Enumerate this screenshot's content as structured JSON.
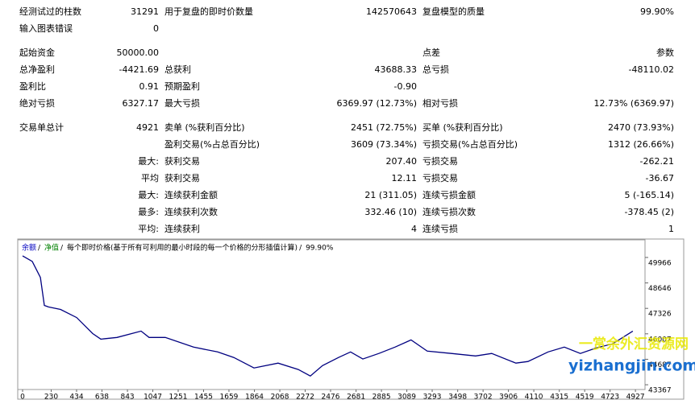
{
  "report": {
    "sections": [
      [
        [
          "经测试过的柱数",
          "31291",
          "用于复盘的即时价数量",
          "142570643",
          "复盘模型的质量",
          "99.90%"
        ],
        [
          "输入图表错误",
          "0",
          null,
          null,
          null,
          null
        ]
      ],
      [
        [
          "起始资金",
          "50000.00",
          null,
          null,
          "点差",
          "参数"
        ],
        [
          "总净盈利",
          "-4421.69",
          "总获利",
          "43688.33",
          "总亏损",
          "-48110.02"
        ],
        [
          "盈利比",
          "0.91",
          "预期盈利",
          "-0.90",
          null,
          null
        ],
        [
          "绝对亏损",
          "6327.17",
          "最大亏损",
          "6369.97 (12.73%)",
          "相对亏损",
          "12.73% (6369.97)"
        ]
      ],
      [
        [
          "交易单总计",
          "4921",
          "卖单 (%获利百分比)",
          "2451 (72.75%)",
          "买单 (%获利百分比)",
          "2470 (73.93%)"
        ],
        [
          null,
          null,
          "盈利交易(%占总百分比)",
          "3609 (73.34%)",
          "亏损交易(%占总百分比)",
          "1312 (26.66%)"
        ],
        [
          null,
          "最大:",
          "获利交易",
          "207.40",
          "亏损交易",
          "-262.21"
        ],
        [
          null,
          "平均",
          "获利交易",
          "12.11",
          "亏损交易",
          "-36.67"
        ],
        [
          null,
          "最大:",
          "连续获利金额",
          "21 (311.05)",
          "连续亏损金额",
          "5 (-165.14)"
        ],
        [
          null,
          "最多:",
          "连续获利次数",
          "332.46 (10)",
          "连续亏损次数",
          "-378.45 (2)"
        ],
        [
          null,
          "平均:",
          "连续获利",
          "4",
          "连续亏损",
          "1"
        ]
      ]
    ]
  },
  "chart_data": {
    "type": "line",
    "legend": [
      "余额",
      "净值",
      "每个即时价格(基于所有可利用的最小时段的每一个价格的分形插值计算)",
      "99.90%"
    ],
    "watermark": [
      "一赏余外汇资源网",
      "yizhangjin.com"
    ],
    "x": [
      0,
      78,
      143,
      175,
      208,
      305,
      435,
      564,
      629,
      759,
      953,
      1017,
      1147,
      1374,
      1568,
      1698,
      1860,
      2054,
      2216,
      2313,
      2411,
      2540,
      2637,
      2735,
      2864,
      2994,
      3123,
      3253,
      3447,
      3642,
      3771,
      3966,
      4063,
      4225,
      4355,
      4484,
      4614,
      4744,
      4906
    ],
    "series": [
      {
        "name": "余额",
        "color": "#000080",
        "values": [
          50050,
          49760,
          48930,
          47480,
          47400,
          47270,
          46850,
          46020,
          45730,
          45820,
          46150,
          45820,
          45820,
          45320,
          45070,
          44780,
          44240,
          44490,
          44160,
          43820,
          44360,
          44780,
          45070,
          44700,
          44990,
          45320,
          45690,
          45110,
          44990,
          44860,
          44990,
          44490,
          44570,
          45070,
          45320,
          44990,
          45280,
          45490,
          46150
        ]
      }
    ],
    "xlim": [
      -39,
      5004
    ],
    "ylim": [
      43120,
      50880
    ],
    "xticks": [
      0,
      230,
      434,
      638,
      843,
      1047,
      1251,
      1455,
      1659,
      1864,
      2068,
      2272,
      2476,
      2681,
      2885,
      3089,
      3293,
      3498,
      3702,
      3906,
      4110,
      4315,
      4519,
      4723,
      4927
    ],
    "yticks": [
      43367,
      44687,
      46007,
      47326,
      48646,
      49966
    ]
  }
}
